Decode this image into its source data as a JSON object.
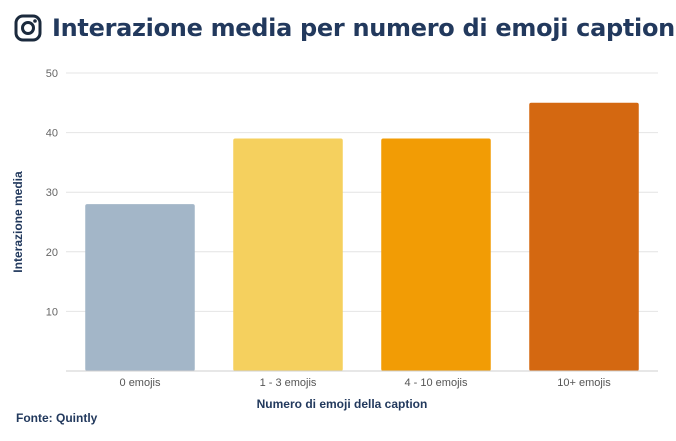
{
  "header": {
    "icon": "instagram-icon",
    "title": "Interazione media per numero di emoji caption"
  },
  "chart_data": {
    "type": "bar",
    "title": "Interazione media per numero di emoji caption",
    "categories": [
      "0 emojis",
      "1 - 3 emojis",
      "4 - 10 emojis",
      "10+ emojis"
    ],
    "values": [
      28,
      39,
      39,
      45
    ],
    "colors": [
      "#a3b6c8",
      "#f5d05e",
      "#f29c05",
      "#d46811"
    ],
    "xlabel": "Numero di emoji della caption",
    "ylabel": "Interazione media",
    "ylim": [
      0,
      50
    ],
    "yticks": [
      10,
      20,
      30,
      40,
      50
    ],
    "grid": true
  },
  "footer": {
    "source": "Fonte: Quintly"
  }
}
